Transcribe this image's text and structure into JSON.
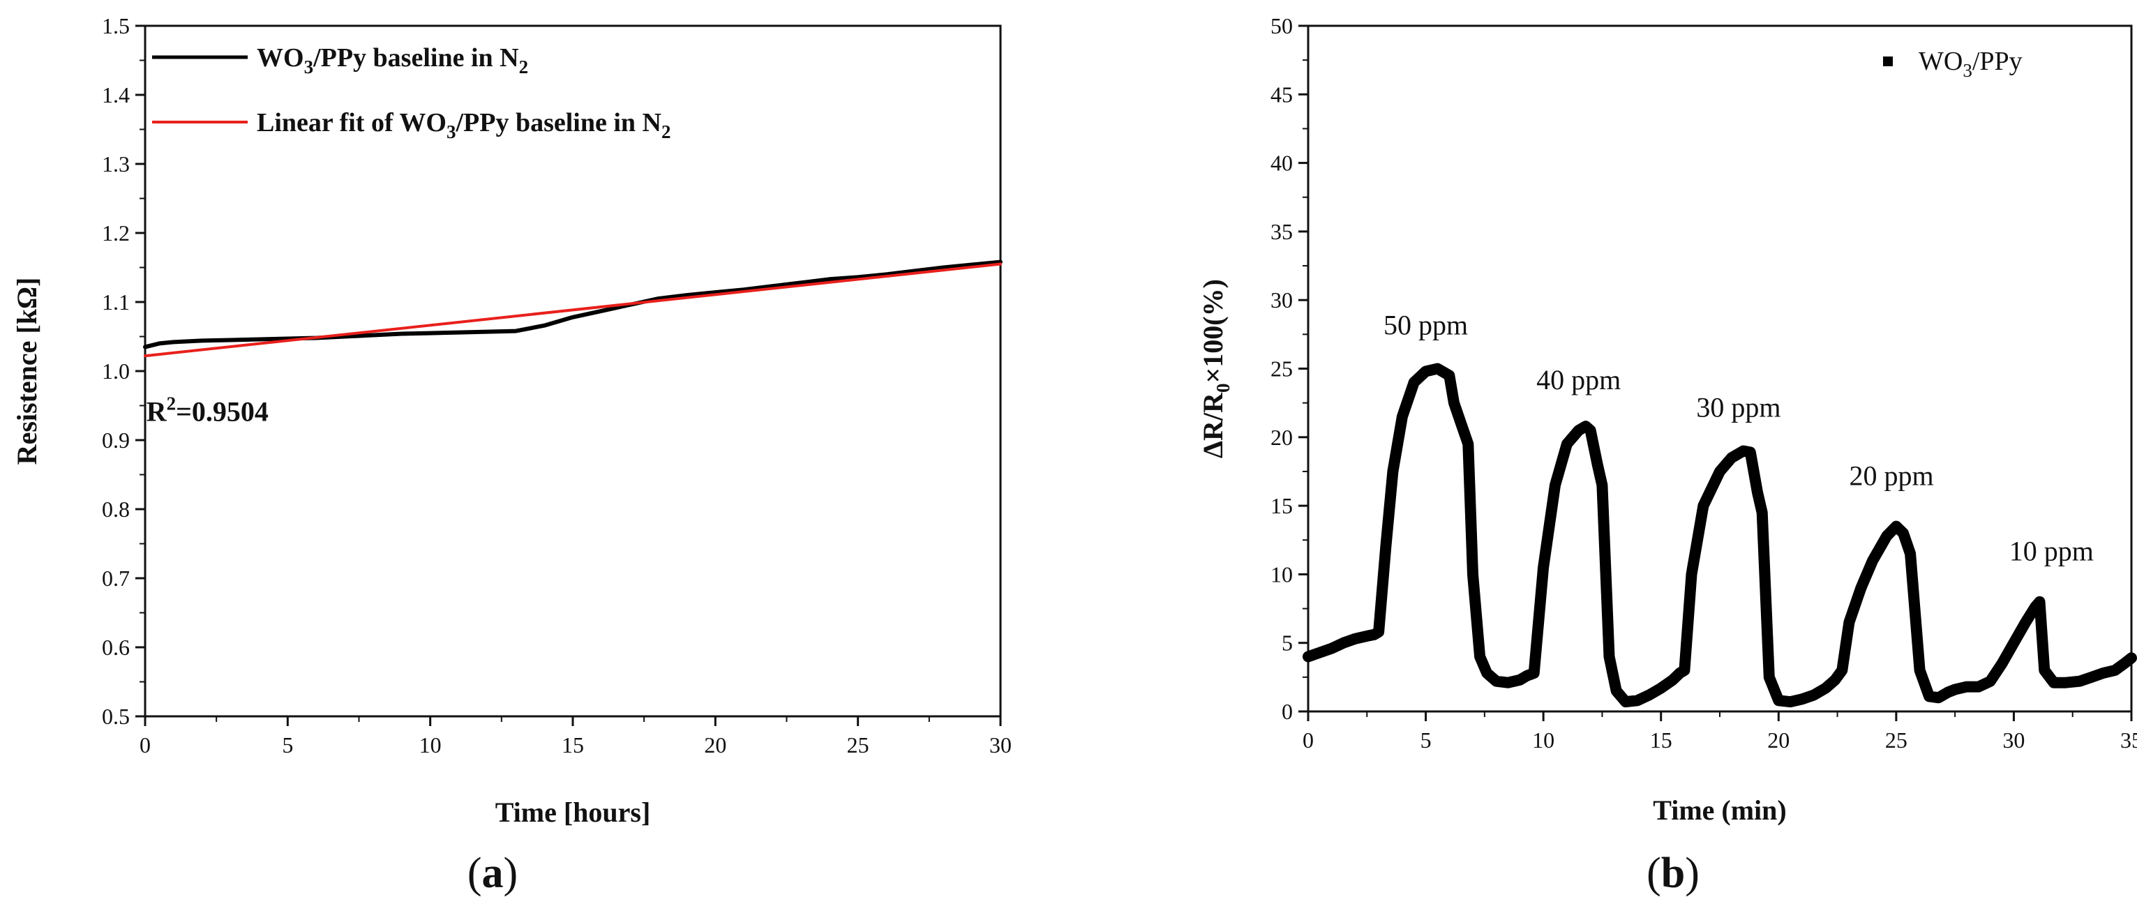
{
  "colors": {
    "axis": "#111111",
    "series_black": "#000000",
    "fit_red": "#e8201c"
  },
  "chart_data": [
    {
      "id": "a",
      "type": "line",
      "caption": "a",
      "xlabel": "Time [hours]",
      "ylabel": "Resistence [kΩ]",
      "xlim": [
        0,
        30
      ],
      "ylim": [
        0.5,
        1.5
      ],
      "x_ticks": [
        0,
        5,
        10,
        15,
        20,
        25,
        30
      ],
      "y_ticks": [
        0.5,
        0.6,
        0.7,
        0.8,
        0.9,
        1.0,
        1.1,
        1.2,
        1.3,
        1.4,
        1.5
      ],
      "grid": false,
      "legend_position": "top-left",
      "series": [
        {
          "name": "WO3/PPy baseline in N2",
          "legend": {
            "pre": "WO",
            "sub1": "3",
            "mid": "/PPy baseline in N",
            "sub2": "2"
          },
          "color": "#000000",
          "x": [
            0,
            0.5,
            1,
            2,
            3,
            4,
            5,
            6,
            7,
            8,
            9,
            10,
            11,
            12,
            13,
            14,
            15,
            16,
            17,
            18,
            19,
            20,
            21,
            22,
            23,
            24,
            25,
            26,
            27,
            28,
            29,
            30
          ],
          "values": [
            1.035,
            1.04,
            1.042,
            1.044,
            1.045,
            1.046,
            1.047,
            1.048,
            1.05,
            1.052,
            1.054,
            1.055,
            1.056,
            1.057,
            1.058,
            1.066,
            1.078,
            1.087,
            1.096,
            1.105,
            1.11,
            1.114,
            1.118,
            1.123,
            1.128,
            1.133,
            1.136,
            1.14,
            1.145,
            1.15,
            1.154,
            1.158
          ]
        },
        {
          "name": "Linear fit of WO3/PPy baseline in N2",
          "legend": {
            "pre": "Linear fit of WO",
            "sub1": "3",
            "mid": "/PPy baseline in N",
            "sub2": "2"
          },
          "color": "#e8201c",
          "x": [
            0,
            30
          ],
          "values": [
            1.022,
            1.155
          ]
        }
      ],
      "annotation": {
        "base": "R",
        "sup": "2",
        "rest": "=0.9504",
        "x": 2,
        "y": 0.94
      }
    },
    {
      "id": "b",
      "type": "line",
      "caption": "b",
      "xlabel": "Time (min)",
      "ylabel": "ΔR/R0×100(%)",
      "ylabel_parts": {
        "pre": "ΔR/R",
        "sub": "0",
        "post": "×100(%)"
      },
      "xlim": [
        0,
        35
      ],
      "ylim": [
        0,
        50
      ],
      "x_ticks": [
        0,
        5,
        10,
        15,
        20,
        25,
        30,
        35
      ],
      "y_ticks": [
        0,
        5,
        10,
        15,
        20,
        25,
        30,
        35,
        40,
        45,
        50
      ],
      "grid": false,
      "legend_position": "top-right",
      "series": [
        {
          "name": "WO3/PPy",
          "legend": {
            "pre": "WO",
            "sub1": "3",
            "mid": "/PPy",
            "sub2": ""
          },
          "color": "#000000",
          "x": [
            0,
            0.5,
            1,
            1.5,
            2,
            2.5,
            2.8,
            3.0,
            3.3,
            3.6,
            4.0,
            4.5,
            5.0,
            5.5,
            6.0,
            6.2,
            6.5,
            6.8,
            7.0,
            7.3,
            7.6,
            8.0,
            8.5,
            9.0,
            9.3,
            9.6,
            10.0,
            10.5,
            11.0,
            11.5,
            11.8,
            12.0,
            12.3,
            12.5,
            12.8,
            13.1,
            13.5,
            14.0,
            14.5,
            15.0,
            15.5,
            15.8,
            16.0,
            16.3,
            16.8,
            17.5,
            18.0,
            18.5,
            18.8,
            19.1,
            19.3,
            19.6,
            20.0,
            20.5,
            21.0,
            21.5,
            22.0,
            22.4,
            22.7,
            23.0,
            23.5,
            24.0,
            24.6,
            25.0,
            25.3,
            25.6,
            26.0,
            26.4,
            26.8,
            27.2,
            27.5,
            28.0,
            28.5,
            29.0,
            29.5,
            30.0,
            30.5,
            30.9,
            31.1,
            31.3,
            31.7,
            32.2,
            32.8,
            33.3,
            33.8,
            34.3,
            34.7,
            35.0
          ],
          "values": [
            4.0,
            4.3,
            4.6,
            5.0,
            5.3,
            5.5,
            5.6,
            5.8,
            12.0,
            17.5,
            21.5,
            24.0,
            24.8,
            25.0,
            24.5,
            22.5,
            21.0,
            19.5,
            10.0,
            4.0,
            2.8,
            2.2,
            2.1,
            2.3,
            2.6,
            2.8,
            10.5,
            16.5,
            19.5,
            20.5,
            20.8,
            20.5,
            18.0,
            16.5,
            4.0,
            1.5,
            0.7,
            0.8,
            1.2,
            1.7,
            2.3,
            2.8,
            3.0,
            10.0,
            15.0,
            17.5,
            18.5,
            19.0,
            18.9,
            16.0,
            14.5,
            2.5,
            0.8,
            0.7,
            0.9,
            1.2,
            1.7,
            2.3,
            3.0,
            6.5,
            9.0,
            11.0,
            12.8,
            13.5,
            13.0,
            11.5,
            3.0,
            1.1,
            1.0,
            1.4,
            1.6,
            1.8,
            1.8,
            2.2,
            3.5,
            5.0,
            6.5,
            7.6,
            8.0,
            3.0,
            2.1,
            2.1,
            2.2,
            2.5,
            2.8,
            3.0,
            3.5,
            3.9
          ]
        }
      ],
      "annotations": [
        {
          "text": "50 ppm",
          "x": 5,
          "y": 27.5
        },
        {
          "text": "40 ppm",
          "x": 11.5,
          "y": 23.5
        },
        {
          "text": "30 ppm",
          "x": 18.3,
          "y": 21.5
        },
        {
          "text": "20 ppm",
          "x": 24.8,
          "y": 16.5
        },
        {
          "text": "10 ppm",
          "x": 31.6,
          "y": 11
        }
      ]
    }
  ]
}
